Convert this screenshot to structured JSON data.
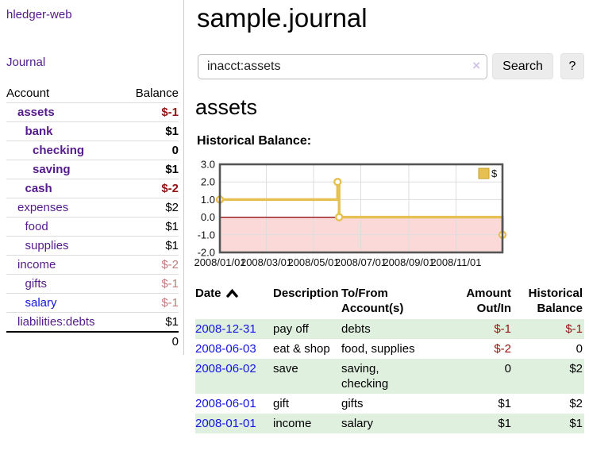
{
  "app": {
    "brand": "hledger-web"
  },
  "sidebar": {
    "journal_link": "Journal",
    "accounts_table": {
      "headers": [
        "Account",
        "Balance"
      ],
      "rows": [
        {
          "name": "assets",
          "balance": "$-1",
          "indent": 1,
          "bold": true
        },
        {
          "name": "bank",
          "balance": "$1",
          "indent": 2,
          "bold": true
        },
        {
          "name": "checking",
          "balance": "0",
          "indent": 3,
          "bold": true
        },
        {
          "name": "saving",
          "balance": "$1",
          "indent": 3,
          "bold": true
        },
        {
          "name": "cash",
          "balance": "$-2",
          "indent": 2,
          "bold": true
        },
        {
          "name": "expenses",
          "balance": "$2",
          "indent": 1,
          "bold": false
        },
        {
          "name": "food",
          "balance": "$1",
          "indent": 2,
          "bold": false
        },
        {
          "name": "supplies",
          "balance": "$1",
          "indent": 2,
          "bold": false
        },
        {
          "name": "income",
          "balance": "$-2",
          "indent": 1,
          "bold": false
        },
        {
          "name": "gifts",
          "balance": "$-1",
          "indent": 2,
          "bold": false
        },
        {
          "name": "salary",
          "balance": "$-1",
          "indent": 2,
          "bold": false,
          "blue": true
        },
        {
          "name": "liabilities:debts",
          "balance": "$1",
          "indent": 1,
          "bold": false
        }
      ],
      "total": "0"
    }
  },
  "header": {
    "title": "sample.journal"
  },
  "search": {
    "value": "inacct:assets",
    "clear_icon": "×",
    "button_label": "Search",
    "help_label": "?"
  },
  "account_page": {
    "title": "assets",
    "chart_label": "Historical Balance:"
  },
  "chart_data": {
    "type": "line",
    "subtype": "step-after",
    "title": "Historical Balance",
    "legend": [
      {
        "name": "$",
        "color": "#e6c050"
      }
    ],
    "legend_position": "top-right",
    "grid": true,
    "x_range": [
      "2008-01-01",
      "2008-12-31"
    ],
    "y_range": [
      -2.0,
      3.0
    ],
    "y_ticks": [
      3.0,
      2.0,
      1.0,
      0.0,
      -1.0,
      -2.0
    ],
    "x_ticks": [
      {
        "date": "2008-01-01",
        "label": "2008/01/01"
      },
      {
        "date": "2008-03-01",
        "label": "2008/03/01"
      },
      {
        "date": "2008-05-01",
        "label": "2008/05/01"
      },
      {
        "date": "2008-07-01",
        "label": "2008/07/01"
      },
      {
        "date": "2008-09-01",
        "label": "2008/09/01"
      },
      {
        "date": "2008-11-01",
        "label": "2008/11/01"
      }
    ],
    "series": [
      {
        "name": "$",
        "points": [
          {
            "date": "2008-01-01",
            "value": 1
          },
          {
            "date": "2008-06-01",
            "value": 2
          },
          {
            "date": "2008-06-03",
            "value": 0
          },
          {
            "date": "2008-12-31",
            "value": -1
          }
        ]
      }
    ],
    "negative_region_shaded": true
  },
  "register_table": {
    "columns": [
      {
        "label": "Date",
        "align": "left",
        "sorted": "asc"
      },
      {
        "label": "Description",
        "align": "left"
      },
      {
        "label": "To/From\nAccount(s)",
        "align": "left"
      },
      {
        "label": "Amount\nOut/In",
        "align": "right"
      },
      {
        "label": "Historical\nBalance",
        "align": "right"
      }
    ],
    "rows": [
      {
        "date": "2008-12-31",
        "description": "pay off",
        "accounts": "debts",
        "amount": "$-1",
        "balance": "$-1"
      },
      {
        "date": "2008-06-03",
        "description": "eat & shop",
        "accounts": "food, supplies",
        "amount": "$-2",
        "balance": "0"
      },
      {
        "date": "2008-06-02",
        "description": "save",
        "accounts": "saving, checking",
        "amount": "0",
        "balance": "$2"
      },
      {
        "date": "2008-06-01",
        "description": "gift",
        "accounts": "gifts",
        "amount": "$1",
        "balance": "$2"
      },
      {
        "date": "2008-01-01",
        "description": "income",
        "accounts": "salary",
        "amount": "$1",
        "balance": "$1"
      }
    ]
  },
  "colors": {
    "link_purple": "#551a8b",
    "link_blue": "#1414e0",
    "negative_strong": "#941313",
    "negative_muted": "#bd7b7b",
    "row_green": "#dff0df",
    "chart_line": "#e6c050",
    "chart_negative_fill": "#fbd9d9",
    "chart_zero_line": "#8b0000",
    "chart_grid": "#dddddd",
    "chart_border": "#555555"
  }
}
